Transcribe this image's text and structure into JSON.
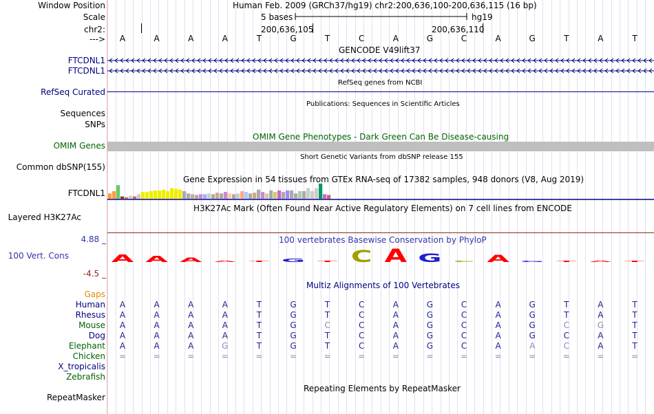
{
  "labels": {
    "window_position": "Window Position",
    "scale": "Scale",
    "chrom": "chr2:",
    "strand": "--->",
    "gene1": "FTCDNL1",
    "gene2": "FTCDNL1",
    "refseq": "RefSeq Curated",
    "sequences": "Sequences",
    "snps": "SNPs",
    "omim": "OMIM Genes",
    "dbsnp": "Common dbSNP(155)",
    "gtex": "FTCDNL1",
    "h3k27ac": "Layered H3K27Ac",
    "cons_max": "4.88 _",
    "cons": "100 Vert. Cons",
    "cons_min": "-4.5 _",
    "gaps": "Gaps",
    "species": [
      "Human",
      "Rhesus",
      "Mouse",
      "Dog",
      "Elephant",
      "Chicken",
      "X_tropicalis",
      "Zebrafish"
    ],
    "repeatmasker": "RepeatMasker"
  },
  "titles": {
    "position": "Human Feb. 2009 (GRCh37/hg19)   chr2:200,636,100-200,636,115 (16 bp)",
    "scale_bases": "5 bases",
    "scale_assembly": "hg19",
    "coord1": "200,636,105",
    "coord2": "200,636,110",
    "gencode": "GENCODE V49lift37",
    "refseq": "RefSeq genes from NCBI",
    "publications": "Publications: Sequences in Scientific Articles",
    "omim": "OMIM Gene Phenotypes - Dark Green Can Be Disease-causing",
    "dbsnp": "Short Genetic Variants from dbSNP release 155",
    "gtex": "Gene Expression in 54 tissues from GTEx RNA-seq of 17382 samples, 948 donors (V8, Aug 2019)",
    "h3k27ac": "H3K27Ac Mark (Often Found Near Active Regulatory Elements) on 7 cell lines from ENCODE",
    "phylop": "100 vertebrates Basewise Conservation by PhyloP",
    "multiz": "Multiz Alignments of 100 Vertebrates",
    "repeatmasker": "Repeating Elements by RepeatMasker"
  },
  "sequence": [
    "A",
    "A",
    "A",
    "A",
    "T",
    "G",
    "T",
    "C",
    "A",
    "G",
    "C",
    "A",
    "G",
    "T",
    "A",
    "T"
  ],
  "alignment": {
    "Human": [
      "A",
      "A",
      "A",
      "A",
      "T",
      "G",
      "T",
      "C",
      "A",
      "G",
      "C",
      "A",
      "G",
      "T",
      "A",
      "T"
    ],
    "Rhesus": [
      "A",
      "A",
      "A",
      "A",
      "T",
      "G",
      "T",
      "C",
      "A",
      "G",
      "C",
      "A",
      "G",
      "T",
      "A",
      "T"
    ],
    "Mouse": [
      "A",
      "A",
      "A",
      "A",
      "T",
      "G",
      "C",
      "C",
      "A",
      "G",
      "C",
      "A",
      "G",
      "C",
      "G",
      "T"
    ],
    "Dog": [
      "A",
      "A",
      "A",
      "A",
      "T",
      "G",
      "T",
      "C",
      "A",
      "G",
      "C",
      "A",
      "G",
      "C",
      "A",
      "T"
    ],
    "Elephant": [
      "A",
      "A",
      "A",
      "G",
      "T",
      "G",
      "T",
      "C",
      "A",
      "G",
      "C",
      "A",
      "A",
      "C",
      "A",
      "T"
    ],
    "Chicken": [
      "=",
      "=",
      "=",
      "=",
      "=",
      "=",
      "=",
      "=",
      "=",
      "=",
      "=",
      "=",
      "=",
      "=",
      "=",
      "="
    ]
  },
  "mismatch": {
    "Mouse": [
      6,
      13,
      14
    ],
    "Elephant": [
      3,
      12,
      13
    ]
  },
  "conservation": {
    "letters": [
      "A",
      "A",
      "A",
      "A",
      "T",
      "G",
      "T",
      "C",
      "A",
      "G",
      "C",
      "A",
      "G",
      "T",
      "A",
      "T"
    ],
    "heights": [
      0.55,
      0.45,
      0.3,
      0.05,
      0.05,
      0.25,
      0.05,
      0.85,
      0.95,
      0.6,
      0.1,
      0.5,
      0.1,
      0.05,
      0.05,
      0.05
    ]
  },
  "gtex_values": [
    0.35,
    0.5,
    0.9,
    0.15,
    0.1,
    0.2,
    0.15,
    0.3,
    0.45,
    0.45,
    0.5,
    0.55,
    0.55,
    0.6,
    0.5,
    0.7,
    0.65,
    0.6,
    0.5,
    0.35,
    0.3,
    0.25,
    0.3,
    0.3,
    0.35,
    0.3,
    0.4,
    0.35,
    0.45,
    0.35,
    0.3,
    0.35,
    0.5,
    0.45,
    0.35,
    0.4,
    0.6,
    0.45,
    0.35,
    0.55,
    0.45,
    0.55,
    0.45,
    0.55,
    0.55,
    0.35,
    0.5,
    0.5,
    0.7,
    0.5,
    0.7,
    1.0,
    0.3,
    0.25
  ],
  "colors": {
    "A": "#ff0000",
    "C": "#a0a000",
    "G": "#1f1fd0",
    "T": "#ff0000",
    "omim": "#bfbfbf",
    "h3k": "#8b2c1a"
  }
}
